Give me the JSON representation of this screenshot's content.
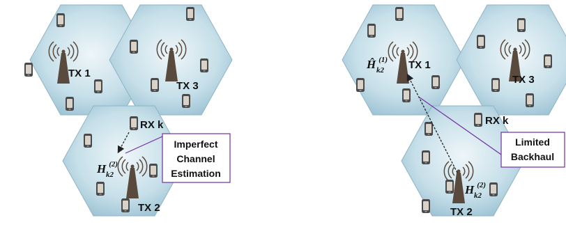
{
  "left_panel": {
    "tx1_label": "TX 1",
    "tx2_label": "TX 2",
    "tx3_label": "TX 3",
    "rx_label": "RX k",
    "channel_symbol": {
      "base": "H",
      "superscript": "(2)",
      "subscript": "k2"
    },
    "callout_lines": [
      "Imperfect",
      "Channel",
      "Estimation"
    ]
  },
  "right_panel": {
    "tx1_label": "TX 1",
    "tx2_label": "TX 2",
    "tx3_label": "TX 3",
    "rx_label": "RX k",
    "channel_symbol_tx2": {
      "base": "H",
      "superscript": "(2)",
      "subscript": "k2"
    },
    "channel_symbol_tx1": {
      "base": "Ĥ",
      "superscript": "(1)",
      "subscript": "k2"
    },
    "callout_lines": [
      "Limited",
      "Backhaul"
    ]
  },
  "colors": {
    "cell_fill_center": "#e9f3f7",
    "cell_fill_edge": "#9fc5d6",
    "cell_stroke": "#8fb4c6",
    "callout_border": "#7030a0",
    "antenna": "#5a4a3e",
    "phone": "#4a4a4a"
  },
  "icons": [
    "antenna-tower-icon",
    "mobile-phone-icon",
    "dashed-arrow-icon"
  ]
}
